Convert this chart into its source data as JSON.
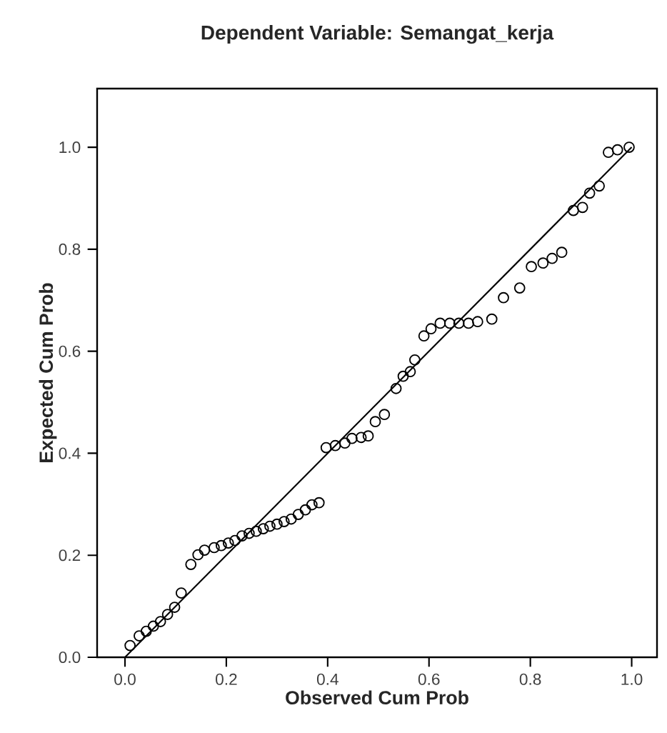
{
  "chart_data": {
    "type": "scatter",
    "title": "Dependent Variable: Semangat_kerja",
    "xlabel": "Observed Cum Prob",
    "ylabel": "Expected Cum Prob",
    "xlim": [
      -0.055,
      1.05
    ],
    "ylim": [
      0,
      1.115
    ],
    "xticks": [
      {
        "value": 0,
        "label": "0.0"
      },
      {
        "value": 0.2,
        "label": "0.2"
      },
      {
        "value": 0.4,
        "label": "0.4"
      },
      {
        "value": 0.6,
        "label": "0.6"
      },
      {
        "value": 0.8,
        "label": "0.8"
      },
      {
        "value": 1,
        "label": "1.0"
      }
    ],
    "yticks": [
      {
        "value": 0,
        "label": "0.0"
      },
      {
        "value": 0.2,
        "label": "0.2"
      },
      {
        "value": 0.4,
        "label": "0.4"
      },
      {
        "value": 0.6,
        "label": "0.6"
      },
      {
        "value": 0.8,
        "label": "0.8"
      },
      {
        "value": 1,
        "label": "1.0"
      }
    ],
    "series": [
      {
        "marker": "circle",
        "color": "#000000",
        "x": [
          0.01,
          0.028,
          0.042,
          0.056,
          0.07,
          0.084,
          0.098,
          0.111,
          0.13,
          0.144,
          0.157,
          0.176,
          0.19,
          0.204,
          0.217,
          0.231,
          0.245,
          0.259,
          0.273,
          0.286,
          0.3,
          0.314,
          0.328,
          0.342,
          0.356,
          0.369,
          0.383,
          0.397,
          0.415,
          0.434,
          0.448,
          0.466,
          0.48,
          0.494,
          0.512,
          0.535,
          0.549,
          0.563,
          0.572,
          0.59,
          0.604,
          0.622,
          0.641,
          0.659,
          0.678,
          0.696,
          0.724,
          0.747,
          0.779,
          0.802,
          0.825,
          0.843,
          0.862,
          0.885,
          0.903,
          0.917,
          0.936,
          0.954,
          0.972,
          0.995
        ],
        "values": [
          0.023,
          0.042,
          0.051,
          0.061,
          0.07,
          0.084,
          0.098,
          0.126,
          0.182,
          0.201,
          0.21,
          0.215,
          0.219,
          0.224,
          0.229,
          0.238,
          0.243,
          0.247,
          0.252,
          0.257,
          0.261,
          0.266,
          0.271,
          0.28,
          0.289,
          0.299,
          0.303,
          0.411,
          0.415,
          0.42,
          0.429,
          0.431,
          0.434,
          0.462,
          0.476,
          0.527,
          0.551,
          0.56,
          0.583,
          0.63,
          0.644,
          0.655,
          0.655,
          0.655,
          0.655,
          0.658,
          0.663,
          0.705,
          0.724,
          0.766,
          0.773,
          0.782,
          0.794,
          0.876,
          0.882,
          0.91,
          0.924,
          0.99,
          0.995,
          1.0
        ]
      },
      {
        "type": "line",
        "color": "#000000",
        "x": [
          0,
          1
        ],
        "values": [
          0,
          1
        ]
      }
    ]
  }
}
